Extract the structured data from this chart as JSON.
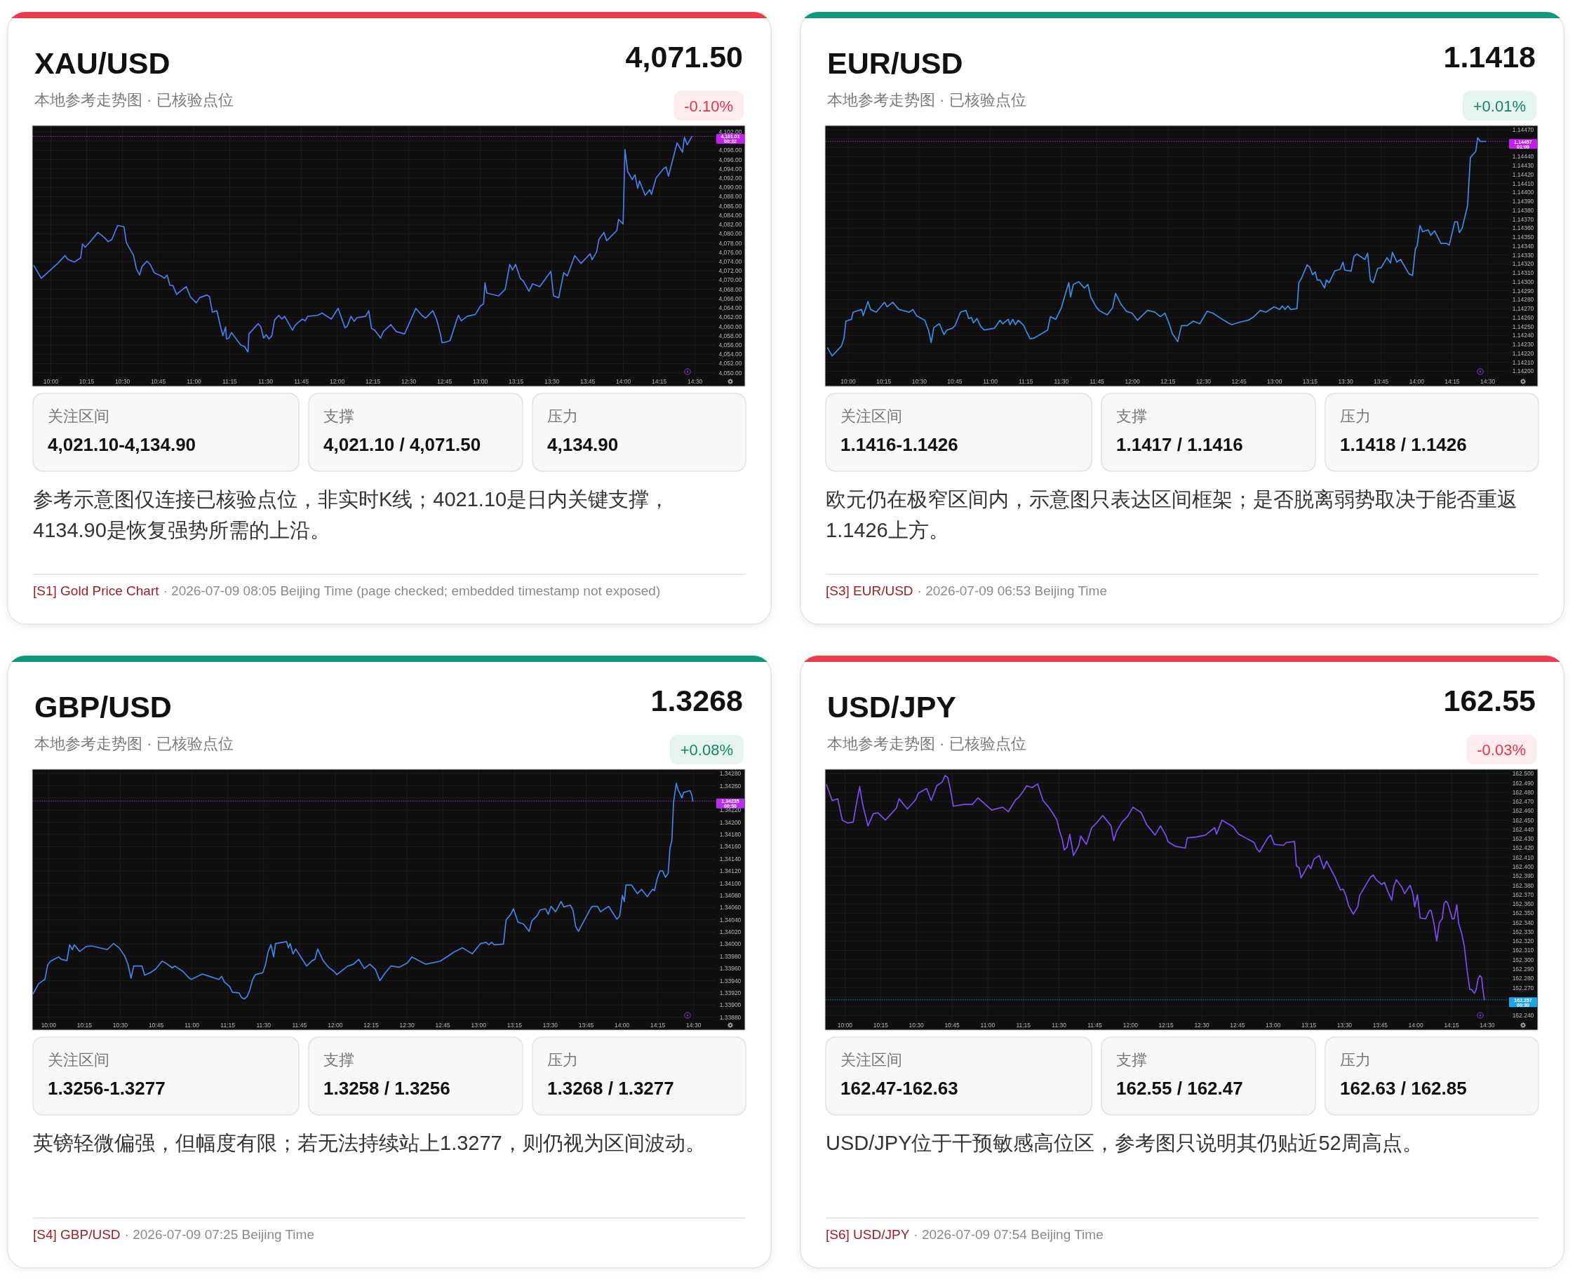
{
  "chart_data": [
    {
      "type": "line",
      "title": "XAU/USD",
      "subtitle": "本地参考走势图 · 已核验点位",
      "x": [
        9.882,
        9.933,
        10.048,
        10.099,
        10.118,
        10.163,
        10.208,
        10.221,
        10.24,
        10.281,
        10.329,
        10.377,
        10.4,
        10.425,
        10.467,
        10.511,
        10.527,
        10.578,
        10.598,
        10.62,
        10.636,
        10.671,
        10.694,
        10.722,
        10.77,
        10.793,
        10.812,
        10.831,
        10.853,
        10.879,
        10.904,
        10.946,
        10.975,
        11.016,
        11.039,
        11.09,
        11.109,
        11.128,
        11.16,
        11.186,
        11.202,
        11.221,
        11.227,
        11.243,
        11.262,
        11.326,
        11.352,
        11.377,
        11.384,
        11.448,
        11.467,
        11.486,
        11.505,
        11.524,
        11.544,
        11.563,
        11.592,
        11.614,
        11.633,
        11.688,
        11.71,
        11.758,
        11.777,
        11.793,
        11.863,
        11.895,
        11.959,
        12.007,
        12.055,
        12.071,
        12.097,
        12.119,
        12.138,
        12.199,
        12.221,
        12.24,
        12.263,
        12.304,
        12.323,
        12.375,
        12.413,
        12.471,
        12.55,
        12.592,
        12.618,
        12.669,
        12.694,
        12.72,
        12.733,
        12.768,
        12.79,
        12.835,
        12.848,
        12.867,
        12.908,
        12.966,
        13.001,
        13.023,
        13.033,
        13.046,
        13.129,
        13.174,
        13.206,
        13.225,
        13.247,
        13.279,
        13.301,
        13.34,
        13.365,
        13.416,
        13.493,
        13.512,
        13.548,
        13.583,
        13.608,
        13.66,
        13.704,
        13.768,
        13.781,
        13.813,
        13.829,
        13.864,
        13.883,
        13.954,
        13.966,
        13.998,
        14.011,
        14.03,
        14.062,
        14.081,
        14.1,
        14.113,
        14.152,
        14.184,
        14.196,
        14.228,
        14.279,
        14.298,
        14.315,
        14.375,
        14.413,
        14.426,
        14.446,
        14.478
      ],
      "values": [
        4073.1,
        4070.4,
        4073.6,
        4075.3,
        4074.5,
        4073.9,
        4074.8,
        4077.8,
        4077.1,
        4078.5,
        4080.3,
        4079.1,
        4078.3,
        4078.7,
        4081.8,
        4081.5,
        4078.1,
        4075.3,
        4072.4,
        4071.1,
        4072.9,
        4074.1,
        4073.4,
        4071.6,
        4070.9,
        4070.4,
        4071.1,
        4068.9,
        4068.8,
        4066.9,
        4067.6,
        4068.6,
        4066.4,
        4065.1,
        4066.2,
        4066.8,
        4066.4,
        4063.1,
        4063.4,
        4059.9,
        4058.0,
        4059.9,
        4057.3,
        4057.5,
        4058.7,
        4056.0,
        4055.7,
        4054.5,
        4058.4,
        4060.6,
        4059.9,
        4057.5,
        4058.2,
        4057.3,
        4058.0,
        4061.4,
        4062.4,
        4061.6,
        4062.2,
        4059.2,
        4060.4,
        4061.6,
        4061.2,
        4062.2,
        4062.4,
        4062.9,
        4061.6,
        4063.9,
        4059.7,
        4060.1,
        4062.2,
        4061.1,
        4061.9,
        4062.2,
        4063.4,
        4059.6,
        4059.2,
        4057.5,
        4058.9,
        4060.4,
        4058.9,
        4058.4,
        4063.9,
        4062.4,
        4061.8,
        4063.4,
        4061.6,
        4058.6,
        4056.5,
        4056.7,
        4057.0,
        4061.4,
        4062.4,
        4061.2,
        4062.2,
        4062.6,
        4064.4,
        4064.9,
        4069.4,
        4067.2,
        4066.6,
        4068.0,
        4073.4,
        4072.2,
        4073.4,
        4070.4,
        4069.8,
        4067.6,
        4069.2,
        4068.6,
        4071.9,
        4066.6,
        4066.2,
        4071.6,
        4070.9,
        4075.3,
        4073.6,
        4075.7,
        4074.4,
        4076.1,
        4078.8,
        4080.3,
        4078.5,
        4080.7,
        4083.1,
        4082.1,
        4098.2,
        4093.4,
        4091.7,
        4092.7,
        4089.8,
        4091.4,
        4088.3,
        4089.5,
        4088.5,
        4092.0,
        4094.0,
        4094.4,
        4092.4,
        4099.6,
        4097.6,
        4100.8,
        4099.2,
        4101.0
      ],
      "color": "#4c7ce8",
      "xlim": [
        9.875,
        14.644
      ],
      "xticks": [
        {
          "value": 10,
          "label": "10:00"
        },
        {
          "value": 10.25,
          "label": "10:15"
        },
        {
          "value": 10.5,
          "label": "10:30"
        },
        {
          "value": 10.75,
          "label": "10:45"
        },
        {
          "value": 11,
          "label": "11:00"
        },
        {
          "value": 11.25,
          "label": "11:15"
        },
        {
          "value": 11.5,
          "label": "11:30"
        },
        {
          "value": 11.75,
          "label": "11:45"
        },
        {
          "value": 12,
          "label": "12:00"
        },
        {
          "value": 12.25,
          "label": "12:15"
        },
        {
          "value": 12.5,
          "label": "12:30"
        },
        {
          "value": 12.75,
          "label": "12:45"
        },
        {
          "value": 13,
          "label": "13:00"
        },
        {
          "value": 13.25,
          "label": "13:15"
        },
        {
          "value": 13.5,
          "label": "13:30"
        },
        {
          "value": 13.75,
          "label": "13:45"
        },
        {
          "value": 14,
          "label": "14:00"
        },
        {
          "value": 14.25,
          "label": "14:15"
        },
        {
          "value": 14.5,
          "label": "14:30"
        }
      ],
      "ylim": [
        4049.2,
        4103.2
      ],
      "yticks": [
        {
          "value": 4050,
          "label": "4,050.00"
        },
        {
          "value": 4052,
          "label": "4,052.00"
        },
        {
          "value": 4054,
          "label": "4,054.00"
        },
        {
          "value": 4056,
          "label": "4,056.00"
        },
        {
          "value": 4058,
          "label": "4,058.00"
        },
        {
          "value": 4060,
          "label": "4,060.00"
        },
        {
          "value": 4062,
          "label": "4,062.00"
        },
        {
          "value": 4064,
          "label": "4,064.00"
        },
        {
          "value": 4066,
          "label": "4,066.00"
        },
        {
          "value": 4068,
          "label": "4,068.00"
        },
        {
          "value": 4070,
          "label": "4,070.00"
        },
        {
          "value": 4072,
          "label": "4,072.00"
        },
        {
          "value": 4074,
          "label": "4,074.00"
        },
        {
          "value": 4076,
          "label": "4,076.00"
        },
        {
          "value": 4078,
          "label": "4,078.00"
        },
        {
          "value": 4080,
          "label": "4,080.00"
        },
        {
          "value": 4082,
          "label": "4,082.00"
        },
        {
          "value": 4084,
          "label": "4,084.00"
        },
        {
          "value": 4086,
          "label": "4,086.00"
        },
        {
          "value": 4088,
          "label": "4,088.00"
        },
        {
          "value": 4090,
          "label": "4,090.00"
        },
        {
          "value": 4092,
          "label": "4,092.00"
        },
        {
          "value": 4094,
          "label": "4,094.00"
        },
        {
          "value": 4096,
          "label": "4,096.00"
        },
        {
          "value": 4098,
          "label": "4,098.00"
        },
        {
          "value": 4100,
          "label": null
        },
        {
          "value": 4102,
          "label": "4,102.00"
        }
      ],
      "grid": true,
      "ref_lines": [
        {
          "axis": "y",
          "value": 4101.01,
          "label": "4,101.01\n00:32",
          "color": "#c21ff0",
          "line_style": "dotted"
        }
      ],
      "annotations": [
        "4,071.50",
        "-0.10%",
        "关注区间",
        "4,021.10-4,134.90",
        "支撑",
        "4,021.10 / 4,071.50",
        "压力",
        "4,134.90",
        "参考示意图仅连接已核验点位，非实时K线；4021.10是日内关键支撑，4134.90是恢复强势所需的上沿。",
        "[S1] Gold Price Chart",
        "· 2026-07-09 08:05 Beijing Time (page checked; embedded timestamp not exposed)"
      ]
    },
    {
      "type": "line",
      "title": "EUR/USD",
      "subtitle": "本地参考走势图 · 已核验点位",
      "x": [
        9.855,
        9.887,
        9.952,
        9.971,
        9.984,
        10.023,
        10.035,
        10.094,
        10.106,
        10.139,
        10.158,
        10.197,
        10.255,
        10.274,
        10.313,
        10.358,
        10.429,
        10.455,
        10.481,
        10.539,
        10.565,
        10.584,
        10.603,
        10.642,
        10.674,
        10.694,
        10.732,
        10.752,
        10.79,
        10.829,
        10.848,
        10.868,
        10.881,
        10.906,
        10.932,
        10.958,
        11.029,
        11.068,
        11.087,
        11.126,
        11.139,
        11.158,
        11.177,
        11.197,
        11.236,
        11.255,
        11.281,
        11.307,
        11.403,
        11.423,
        11.461,
        11.5,
        11.539,
        11.552,
        11.565,
        11.584,
        11.623,
        11.661,
        11.687,
        11.707,
        11.745,
        11.765,
        11.823,
        11.861,
        11.881,
        11.919,
        11.958,
        11.997,
        12.036,
        12.087,
        12.107,
        12.158,
        12.197,
        12.229,
        12.261,
        12.281,
        12.319,
        12.345,
        12.384,
        12.429,
        12.474,
        12.526,
        12.565,
        12.623,
        12.674,
        12.7,
        12.758,
        12.816,
        12.855,
        12.9,
        12.939,
        12.997,
        13.036,
        13.055,
        13.074,
        13.094,
        13.113,
        13.158,
        13.171,
        13.19,
        13.229,
        13.249,
        13.268,
        13.287,
        13.3,
        13.32,
        13.352,
        13.365,
        13.384,
        13.423,
        13.462,
        13.481,
        13.494,
        13.539,
        13.558,
        13.578,
        13.636,
        13.655,
        13.674,
        13.694,
        13.726,
        13.752,
        13.791,
        13.816,
        13.829,
        13.861,
        13.887,
        13.945,
        13.971,
        13.991,
        14.003,
        14.023,
        14.042,
        14.081,
        14.1,
        14.126,
        14.171,
        14.21,
        14.229,
        14.268,
        14.287,
        14.3,
        14.32,
        14.358,
        14.378,
        14.416,
        14.429,
        14.449,
        14.487
      ],
      "values": [
        1.14226,
        1.14217,
        1.14228,
        1.14237,
        1.14256,
        1.14258,
        1.14266,
        1.14269,
        1.14262,
        1.14278,
        1.14269,
        1.14266,
        1.14277,
        1.14272,
        1.14277,
        1.14269,
        1.14266,
        1.14269,
        1.14262,
        1.14257,
        1.14246,
        1.14232,
        1.14249,
        1.14253,
        1.14241,
        1.14246,
        1.14248,
        1.14251,
        1.14266,
        1.14268,
        1.14259,
        1.1426,
        1.14254,
        1.14259,
        1.1425,
        1.14246,
        1.14248,
        1.14257,
        1.14253,
        1.14258,
        1.14252,
        1.14258,
        1.14252,
        1.14257,
        1.14251,
        1.14244,
        1.14236,
        1.14237,
        1.14246,
        1.14261,
        1.14258,
        1.14271,
        1.14292,
        1.14299,
        1.14283,
        1.14297,
        1.143,
        1.14293,
        1.14297,
        1.14283,
        1.14272,
        1.14268,
        1.14263,
        1.14271,
        1.14287,
        1.14275,
        1.14267,
        1.14265,
        1.14257,
        1.14265,
        1.14268,
        1.14266,
        1.14261,
        1.14265,
        1.14252,
        1.14242,
        1.14233,
        1.14251,
        1.14251,
        1.14256,
        1.14253,
        1.14267,
        1.14265,
        1.14259,
        1.14254,
        1.14252,
        1.14255,
        1.14257,
        1.14261,
        1.14268,
        1.14266,
        1.14272,
        1.14269,
        1.14273,
        1.14269,
        1.14273,
        1.14269,
        1.1427,
        1.14299,
        1.14304,
        1.14319,
        1.14316,
        1.14308,
        1.14311,
        1.14302,
        1.14302,
        1.14293,
        1.14302,
        1.14299,
        1.14312,
        1.14314,
        1.14322,
        1.14313,
        1.14312,
        1.14328,
        1.14331,
        1.14325,
        1.14332,
        1.14302,
        1.14299,
        1.14315,
        1.14316,
        1.14327,
        1.14321,
        1.14333,
        1.14322,
        1.14325,
        1.14309,
        1.14307,
        1.14337,
        1.1434,
        1.14363,
        1.14356,
        1.14358,
        1.14352,
        1.14357,
        1.14343,
        1.14343,
        1.14341,
        1.14367,
        1.14367,
        1.14355,
        1.1436,
        1.14385,
        1.14439,
        1.14446,
        1.14461,
        1.14457,
        1.14457
      ],
      "color": "#3d8be3",
      "xlim": [
        9.842,
        14.645
      ],
      "xticks": [
        {
          "value": 10,
          "label": "10:00"
        },
        {
          "value": 10.25,
          "label": "10:15"
        },
        {
          "value": 10.5,
          "label": "10:30"
        },
        {
          "value": 10.75,
          "label": "10:45"
        },
        {
          "value": 11,
          "label": "11:00"
        },
        {
          "value": 11.25,
          "label": "11:15"
        },
        {
          "value": 11.5,
          "label": "11:30"
        },
        {
          "value": 11.75,
          "label": "11:45"
        },
        {
          "value": 12,
          "label": "12:00"
        },
        {
          "value": 12.25,
          "label": "12:15"
        },
        {
          "value": 12.5,
          "label": "12:30"
        },
        {
          "value": 12.75,
          "label": "12:45"
        },
        {
          "value": 13,
          "label": "13:00"
        },
        {
          "value": 13.25,
          "label": "13:15"
        },
        {
          "value": 13.5,
          "label": "13:30"
        },
        {
          "value": 13.75,
          "label": "13:45"
        },
        {
          "value": 14,
          "label": "14:00"
        },
        {
          "value": 14.25,
          "label": "14:15"
        },
        {
          "value": 14.5,
          "label": "14:30"
        }
      ],
      "ylim": [
        1.14194,
        1.14474
      ],
      "yticks": [
        {
          "value": 1.142,
          "label": "1.14200"
        },
        {
          "value": 1.1421,
          "label": "1.14210"
        },
        {
          "value": 1.1422,
          "label": "1.14220"
        },
        {
          "value": 1.1423,
          "label": "1.14230"
        },
        {
          "value": 1.1424,
          "label": "1.14240"
        },
        {
          "value": 1.1425,
          "label": "1.14250"
        },
        {
          "value": 1.1426,
          "label": "1.14260"
        },
        {
          "value": 1.1427,
          "label": "1.14270"
        },
        {
          "value": 1.1428,
          "label": "1.14280"
        },
        {
          "value": 1.1429,
          "label": "1.14290"
        },
        {
          "value": 1.143,
          "label": "1.14300"
        },
        {
          "value": 1.1431,
          "label": "1.14310"
        },
        {
          "value": 1.1432,
          "label": "1.14320"
        },
        {
          "value": 1.1433,
          "label": "1.14330"
        },
        {
          "value": 1.1434,
          "label": "1.14340"
        },
        {
          "value": 1.1435,
          "label": "1.14350"
        },
        {
          "value": 1.1436,
          "label": "1.14360"
        },
        {
          "value": 1.1437,
          "label": "1.14370"
        },
        {
          "value": 1.1438,
          "label": "1.14380"
        },
        {
          "value": 1.1439,
          "label": "1.14390"
        },
        {
          "value": 1.144,
          "label": "1.14400"
        },
        {
          "value": 1.1441,
          "label": "1.14410"
        },
        {
          "value": 1.1442,
          "label": "1.14420"
        },
        {
          "value": 1.1443,
          "label": "1.14430"
        },
        {
          "value": 1.1444,
          "label": "1.14440"
        },
        {
          "value": 1.1445,
          "label": null
        },
        {
          "value": 1.1446,
          "label": null
        },
        {
          "value": 1.1447,
          "label": "1.14470"
        }
      ],
      "grid": true,
      "ref_lines": [
        {
          "axis": "y",
          "value": 1.14457,
          "label": "1.14457\n01:00",
          "color": "#c21ff0",
          "line_style": "dotted"
        }
      ],
      "annotations": [
        "1.1418",
        "+0.01%",
        "关注区间",
        "1.1416-1.1426",
        "支撑",
        "1.1417 / 1.1416",
        "压力",
        "1.1418 / 1.1426",
        "欧元仍在极窄区间内，示意图只表达区间框架；是否脱离弱势取决于能否重返1.1426上方。",
        "[S3] EUR/USD",
        "· 2026-07-09 06:53 Beijing Time"
      ]
    },
    {
      "type": "line",
      "title": "GBP/USD",
      "subtitle": "本地参考走势图 · 已核验点位",
      "x": [
        9.891,
        9.93,
        9.974,
        9.994,
        10.013,
        10.07,
        10.089,
        10.128,
        10.147,
        10.166,
        10.179,
        10.217,
        10.262,
        10.3,
        10.409,
        10.453,
        10.492,
        10.53,
        10.555,
        10.575,
        10.594,
        10.651,
        10.67,
        10.709,
        10.747,
        10.792,
        10.817,
        10.862,
        10.881,
        10.938,
        10.977,
        10.996,
        11.073,
        11.111,
        11.187,
        11.207,
        11.226,
        11.264,
        11.283,
        11.328,
        11.347,
        11.366,
        11.385,
        11.404,
        11.424,
        11.443,
        11.494,
        11.513,
        11.532,
        11.551,
        11.57,
        11.583,
        11.66,
        11.673,
        11.685,
        11.705,
        11.724,
        11.762,
        11.8,
        11.839,
        11.858,
        11.877,
        11.915,
        11.953,
        11.992,
        12.011,
        12.088,
        12.126,
        12.164,
        12.202,
        12.241,
        12.279,
        12.311,
        12.349,
        12.388,
        12.445,
        12.503,
        12.534,
        12.63,
        12.732,
        12.79,
        12.828,
        12.886,
        12.956,
        13.013,
        13.052,
        13.071,
        13.09,
        13.109,
        13.173,
        13.192,
        13.224,
        13.243,
        13.275,
        13.313,
        13.352,
        13.371,
        13.409,
        13.428,
        13.467,
        13.486,
        13.505,
        13.537,
        13.575,
        13.594,
        13.639,
        13.658,
        13.677,
        13.696,
        13.735,
        13.773,
        13.792,
        13.83,
        13.85,
        13.907,
        13.964,
        13.984,
        14.003,
        14.016,
        14.028,
        14.067,
        14.107,
        14.137,
        14.176,
        14.214,
        14.227,
        14.246,
        14.265,
        14.284,
        14.303,
        14.322,
        14.335,
        14.348,
        14.36,
        14.379,
        14.392,
        14.405,
        14.418,
        14.43,
        14.475,
        14.488,
        14.494
      ],
      "values": [
        1.33918,
        1.33935,
        1.33942,
        1.33966,
        1.33972,
        1.33979,
        1.33975,
        1.33973,
        1.33999,
        1.33991,
        1.33999,
        1.33988,
        1.33996,
        1.33997,
        1.33991,
        1.34001,
        1.33994,
        1.33981,
        1.33966,
        1.33944,
        1.33964,
        1.33964,
        1.33949,
        1.33953,
        1.33959,
        1.33972,
        1.33969,
        1.33961,
        1.33964,
        1.33955,
        1.33945,
        1.33942,
        1.33951,
        1.33948,
        1.33942,
        1.33947,
        1.33938,
        1.3393,
        1.33921,
        1.3392,
        1.33912,
        1.3391,
        1.33914,
        1.33925,
        1.33942,
        1.3395,
        1.33953,
        1.33966,
        1.33988,
        1.33999,
        1.33979,
        1.34001,
        1.34004,
        1.33994,
        1.34001,
        1.33984,
        1.33992,
        1.33978,
        1.33964,
        1.33973,
        1.33975,
        1.33992,
        1.33973,
        1.33962,
        1.33955,
        1.3395,
        1.33964,
        1.33967,
        1.33975,
        1.3396,
        1.33967,
        1.33959,
        1.3394,
        1.33953,
        1.33964,
        1.33962,
        1.33969,
        1.33979,
        1.33967,
        1.33972,
        1.33981,
        1.33987,
        1.33994,
        1.33984,
        1.34001,
        1.34003,
        1.33999,
        1.34003,
        1.33999,
        1.34,
        1.3404,
        1.34049,
        1.34058,
        1.34036,
        1.34033,
        1.34021,
        1.34038,
        1.34047,
        1.34056,
        1.34058,
        1.34049,
        1.34062,
        1.34053,
        1.3407,
        1.34061,
        1.34064,
        1.34056,
        1.34029,
        1.34021,
        1.34038,
        1.34055,
        1.34062,
        1.34062,
        1.34053,
        1.34062,
        1.34041,
        1.34046,
        1.3408,
        1.3407,
        1.34097,
        1.34097,
        1.34083,
        1.3409,
        1.34078,
        1.3409,
        1.34088,
        1.34108,
        1.3412,
        1.3412,
        1.3411,
        1.34116,
        1.34158,
        1.3417,
        1.34233,
        1.34264,
        1.34253,
        1.34247,
        1.3424,
        1.34249,
        1.34252,
        1.34244,
        1.34235
      ],
      "color": "#4484e6",
      "xlim": [
        9.891,
        14.653
      ],
      "xticks": [
        {
          "value": 10,
          "label": "10:00"
        },
        {
          "value": 10.25,
          "label": "10:15"
        },
        {
          "value": 10.5,
          "label": "10:30"
        },
        {
          "value": 10.75,
          "label": "10:45"
        },
        {
          "value": 11,
          "label": "11:00"
        },
        {
          "value": 11.25,
          "label": "11:15"
        },
        {
          "value": 11.5,
          "label": "11:30"
        },
        {
          "value": 11.75,
          "label": "11:45"
        },
        {
          "value": 12,
          "label": "12:00"
        },
        {
          "value": 12.25,
          "label": "12:15"
        },
        {
          "value": 12.5,
          "label": "12:30"
        },
        {
          "value": 12.75,
          "label": "12:45"
        },
        {
          "value": 13,
          "label": "13:00"
        },
        {
          "value": 13.25,
          "label": "13:15"
        },
        {
          "value": 13.5,
          "label": "13:30"
        },
        {
          "value": 13.75,
          "label": "13:45"
        },
        {
          "value": 14,
          "label": "14:00"
        },
        {
          "value": 14.25,
          "label": "14:15"
        },
        {
          "value": 14.5,
          "label": "14:30"
        }
      ],
      "ylim": [
        1.33875,
        1.34286
      ],
      "yticks": [
        {
          "value": 1.3388,
          "label": "1.33880"
        },
        {
          "value": 1.339,
          "label": "1.33900"
        },
        {
          "value": 1.3392,
          "label": "1.33920"
        },
        {
          "value": 1.3394,
          "label": "1.33940"
        },
        {
          "value": 1.3396,
          "label": "1.33960"
        },
        {
          "value": 1.3398,
          "label": "1.33980"
        },
        {
          "value": 1.34,
          "label": "1.34000"
        },
        {
          "value": 1.3402,
          "label": "1.34020"
        },
        {
          "value": 1.3404,
          "label": "1.34040"
        },
        {
          "value": 1.3406,
          "label": "1.34060"
        },
        {
          "value": 1.3408,
          "label": "1.34080"
        },
        {
          "value": 1.341,
          "label": "1.34100"
        },
        {
          "value": 1.3412,
          "label": "1.34120"
        },
        {
          "value": 1.3414,
          "label": "1.34140"
        },
        {
          "value": 1.3416,
          "label": "1.34160"
        },
        {
          "value": 1.3418,
          "label": "1.34180"
        },
        {
          "value": 1.342,
          "label": "1.34200"
        },
        {
          "value": 1.3422,
          "label": "1.34220"
        },
        {
          "value": 1.3424,
          "label": null
        },
        {
          "value": 1.3426,
          "label": "1.34260"
        },
        {
          "value": 1.3428,
          "label": "1.34280"
        }
      ],
      "grid": true,
      "ref_lines": [
        {
          "axis": "y",
          "value": 1.34235,
          "label": "1.34235\n00:50",
          "color": "#b82ef0",
          "line_style": "dotted"
        }
      ],
      "annotations": [
        "1.3268",
        "+0.08%",
        "关注区间",
        "1.3256-1.3277",
        "支撑",
        "1.3258 / 1.3256",
        "压力",
        "1.3268 / 1.3277",
        "英镑轻微偏强，但幅度有限；若无法持续站上1.3277，则仍视为区间波动。",
        "[S4] GBP/USD",
        "· 2026-07-09 07:25 Beijing Time"
      ]
    },
    {
      "type": "line",
      "title": "USD/JPY",
      "subtitle": "本地参考走势图 · 已核验点位",
      "x": [
        9.871,
        9.91,
        9.949,
        9.981,
        10.019,
        10.058,
        10.071,
        10.103,
        10.122,
        10.161,
        10.199,
        10.231,
        10.283,
        10.36,
        10.379,
        10.437,
        10.495,
        10.514,
        10.572,
        10.604,
        10.643,
        10.681,
        10.701,
        10.72,
        10.739,
        10.759,
        10.836,
        10.893,
        10.932,
        10.99,
        11.028,
        11.106,
        11.144,
        11.196,
        11.215,
        11.253,
        11.273,
        11.311,
        11.35,
        11.388,
        11.427,
        11.466,
        11.485,
        11.504,
        11.523,
        11.536,
        11.556,
        11.575,
        11.601,
        11.639,
        11.652,
        11.691,
        11.729,
        11.768,
        11.806,
        11.864,
        11.883,
        11.903,
        11.941,
        11.98,
        12.018,
        12.076,
        12.115,
        12.173,
        12.211,
        12.25,
        12.263,
        12.314,
        12.385,
        12.398,
        12.462,
        12.526,
        12.591,
        12.603,
        12.642,
        12.719,
        12.758,
        12.867,
        12.886,
        12.905,
        12.963,
        12.983,
        13.008,
        13.073,
        13.092,
        13.15,
        13.163,
        13.182,
        13.195,
        13.214,
        13.246,
        13.265,
        13.285,
        13.323,
        13.355,
        13.375,
        13.433,
        13.471,
        13.49,
        13.51,
        13.529,
        13.561,
        13.593,
        13.606,
        13.683,
        13.702,
        13.722,
        13.76,
        13.78,
        13.805,
        13.831,
        13.844,
        13.863,
        13.902,
        13.921,
        13.96,
        13.979,
        13.992,
        14.011,
        14.03,
        14.069,
        14.095,
        14.107,
        14.127,
        14.146,
        14.165,
        14.185,
        14.197,
        14.21,
        14.223,
        14.255,
        14.268,
        14.287,
        14.3,
        14.32,
        14.339,
        14.358,
        14.378,
        14.39,
        14.41,
        14.423,
        14.435,
        14.448,
        14.461,
        14.467,
        14.48
      ],
      "values": [
        162.488,
        162.471,
        162.473,
        162.45,
        162.447,
        162.448,
        162.46,
        162.486,
        162.468,
        162.444,
        162.457,
        162.458,
        162.45,
        162.463,
        162.473,
        162.462,
        162.472,
        162.479,
        162.484,
        162.471,
        162.487,
        162.491,
        162.498,
        162.496,
        162.483,
        162.465,
        162.467,
        162.467,
        162.474,
        162.466,
        162.461,
        162.464,
        162.459,
        162.472,
        162.474,
        162.482,
        162.487,
        162.485,
        162.489,
        162.471,
        162.464,
        162.455,
        162.45,
        162.438,
        162.429,
        162.418,
        162.421,
        162.435,
        162.412,
        162.423,
        162.433,
        162.424,
        162.442,
        162.448,
        162.455,
        162.444,
        162.428,
        162.438,
        162.448,
        162.454,
        162.464,
        162.458,
        162.445,
        162.434,
        162.444,
        162.433,
        162.427,
        162.422,
        162.42,
        162.431,
        162.432,
        162.434,
        162.442,
        162.435,
        162.45,
        162.443,
        162.435,
        162.426,
        162.419,
        162.416,
        162.431,
        162.434,
        162.424,
        162.423,
        162.426,
        162.427,
        162.401,
        162.399,
        162.388,
        162.393,
        162.402,
        162.398,
        162.408,
        162.412,
        162.398,
        162.406,
        162.389,
        162.375,
        162.376,
        162.369,
        162.358,
        162.349,
        162.357,
        162.369,
        162.389,
        162.391,
        162.386,
        162.381,
        162.383,
        162.373,
        162.364,
        162.378,
        162.386,
        162.378,
        162.371,
        162.38,
        162.371,
        162.357,
        162.37,
        162.345,
        162.344,
        162.353,
        162.353,
        162.339,
        162.32,
        162.34,
        162.344,
        162.36,
        162.363,
        162.361,
        162.344,
        162.344,
        162.359,
        162.339,
        162.329,
        162.315,
        162.29,
        162.268,
        162.268,
        162.264,
        162.268,
        162.279,
        162.283,
        162.281,
        162.271,
        162.257
      ],
      "color": "#7d4df0",
      "xlim": [
        9.865,
        14.648
      ],
      "xticks": [
        {
          "value": 10,
          "label": "10:00"
        },
        {
          "value": 10.25,
          "label": "10:15"
        },
        {
          "value": 10.5,
          "label": "10:30"
        },
        {
          "value": 10.75,
          "label": "10:45"
        },
        {
          "value": 11,
          "label": "11:00"
        },
        {
          "value": 11.25,
          "label": "11:15"
        },
        {
          "value": 11.5,
          "label": "11:30"
        },
        {
          "value": 11.75,
          "label": "11:45"
        },
        {
          "value": 12,
          "label": "12:00"
        },
        {
          "value": 12.25,
          "label": "12:15"
        },
        {
          "value": 12.5,
          "label": "12:30"
        },
        {
          "value": 12.75,
          "label": "12:45"
        },
        {
          "value": 13,
          "label": "13:00"
        },
        {
          "value": 13.25,
          "label": "13:15"
        },
        {
          "value": 13.5,
          "label": "13:30"
        },
        {
          "value": 13.75,
          "label": "13:45"
        },
        {
          "value": 14,
          "label": "14:00"
        },
        {
          "value": 14.25,
          "label": "14:15"
        },
        {
          "value": 14.5,
          "label": "14:30"
        }
      ],
      "ylim": [
        162.235,
        162.504
      ],
      "yticks": [
        {
          "value": 162.24,
          "label": "162.240"
        },
        {
          "value": 162.25,
          "label": null
        },
        {
          "value": 162.26,
          "label": null
        },
        {
          "value": 162.27,
          "label": "162.270"
        },
        {
          "value": 162.28,
          "label": "162.280"
        },
        {
          "value": 162.29,
          "label": "162.290"
        },
        {
          "value": 162.3,
          "label": "162.300"
        },
        {
          "value": 162.31,
          "label": "162.310"
        },
        {
          "value": 162.32,
          "label": "162.320"
        },
        {
          "value": 162.33,
          "label": "162.330"
        },
        {
          "value": 162.34,
          "label": "162.340"
        },
        {
          "value": 162.35,
          "label": "162.350"
        },
        {
          "value": 162.36,
          "label": "162.360"
        },
        {
          "value": 162.37,
          "label": "162.370"
        },
        {
          "value": 162.38,
          "label": "162.380"
        },
        {
          "value": 162.39,
          "label": "162.390"
        },
        {
          "value": 162.4,
          "label": "162.400"
        },
        {
          "value": 162.41,
          "label": "162.410"
        },
        {
          "value": 162.42,
          "label": "162.420"
        },
        {
          "value": 162.43,
          "label": "162.430"
        },
        {
          "value": 162.44,
          "label": "162.440"
        },
        {
          "value": 162.45,
          "label": "162.450"
        },
        {
          "value": 162.46,
          "label": "162.460"
        },
        {
          "value": 162.47,
          "label": "162.470"
        },
        {
          "value": 162.48,
          "label": "162.480"
        },
        {
          "value": 162.49,
          "label": "162.490"
        },
        {
          "value": 162.5,
          "label": "162.500"
        }
      ],
      "grid": true,
      "ref_lines": [
        {
          "axis": "y",
          "value": 162.257,
          "label": "162.257\n00:30",
          "color": "#1ea5e6",
          "line_style": "dotted"
        }
      ],
      "annotations": [
        "162.55",
        "-0.03%",
        "关注区间",
        "162.47-162.63",
        "支撑",
        "162.55 / 162.47",
        "压力",
        "162.63 / 162.85",
        "USD/JPY位于干预敏感高位区，参考图只说明其仍贴近52周高点。",
        "[S6] USD/JPY",
        "· 2026-07-09 07:54 Beijing Time"
      ]
    }
  ]
}
